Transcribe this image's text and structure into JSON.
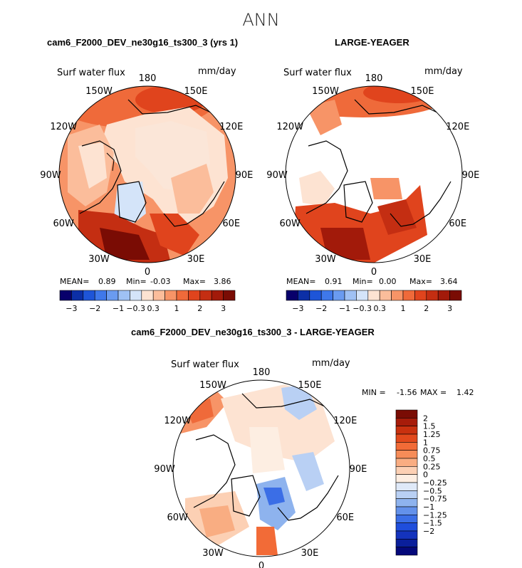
{
  "page": {
    "title": "ANN"
  },
  "panels": [
    {
      "title": "cam6_F2000_DEV_ne30g16_ts300_3 (yrs 1)",
      "variable": "Surf water flux",
      "units": "mm/day",
      "stats": {
        "mean_label": "MEAN=",
        "mean": "0.89",
        "min_label": "Min=",
        "min": "-0.03",
        "max_label": "Max=",
        "max": "3.86"
      }
    },
    {
      "title": "LARGE-YEAGER",
      "variable": "Surf water flux",
      "units": "mm/day",
      "stats": {
        "mean_label": "MEAN=",
        "mean": "0.91",
        "min_label": "Min=",
        "min": "0.00",
        "max_label": "Max=",
        "max": "3.64"
      }
    },
    {
      "title": "cam6_F2000_DEV_ne30g16_ts300_3 - LARGE-YEAGER",
      "variable": "Surf water flux",
      "units": "mm/day",
      "stats": {
        "min_label": "MIN =",
        "min": "-1.56",
        "max_label": "MAX =",
        "max": "1.42"
      }
    }
  ],
  "map_labels": {
    "lon": [
      "180",
      "150E",
      "120E",
      "90E",
      "60E",
      "30E",
      "0",
      "30W",
      "60W",
      "90W",
      "120W",
      "150W"
    ]
  },
  "colorbar_top": {
    "colors": [
      "#08006b",
      "#0c2fa6",
      "#1e55d8",
      "#3f78ea",
      "#6a9bf0",
      "#9fc1f4",
      "#d4e4f9",
      "#fde3d2",
      "#fbbd9b",
      "#f79467",
      "#ef6a3a",
      "#e0441d",
      "#c42e12",
      "#a21a0a",
      "#7a0c04"
    ],
    "tick_labels": [
      "-3",
      "-2",
      "-1",
      "-0.3",
      "0.3",
      "1",
      "2",
      "3"
    ]
  },
  "colorbar_diff": {
    "colors": [
      "#7a0c04",
      "#a71c0a",
      "#c9310f",
      "#e2491c",
      "#f26b37",
      "#f68c58",
      "#f9ad82",
      "#fcd0b4",
      "#fdeee2",
      "#dfe9f8",
      "#b9d0f4",
      "#8eb3ee",
      "#6391ea",
      "#3b6ee6",
      "#1f4edc",
      "#1433bd",
      "#0a1f9b",
      "#04087a"
    ],
    "tick_labels": [
      "2",
      "1.5",
      "1.25",
      "1",
      "0.75",
      "0.5",
      "0.25",
      "0",
      "-0.25",
      "-0.5",
      "-0.75",
      "-1",
      "-1.25",
      "-1.5",
      "-2"
    ]
  },
  "chart_data": [
    {
      "type": "heatmap",
      "projection": "north polar stereographic",
      "title": "cam6_F2000_DEV_ne30g16_ts300_3 (yrs 1)",
      "variable": "Surf water flux",
      "units": "mm/day",
      "mean": 0.89,
      "min": -0.03,
      "max": 3.86,
      "contour_levels": [
        -3,
        -2.5,
        -2,
        -1.5,
        -1,
        -0.6,
        -0.3,
        0,
        0.3,
        0.6,
        1,
        1.5,
        2,
        2.5,
        3
      ]
    },
    {
      "type": "heatmap",
      "projection": "north polar stereographic",
      "title": "LARGE-YEAGER",
      "variable": "Surf water flux",
      "units": "mm/day",
      "mean": 0.91,
      "min": 0.0,
      "max": 3.64,
      "contour_levels": [
        -3,
        -2.5,
        -2,
        -1.5,
        -1,
        -0.6,
        -0.3,
        0,
        0.3,
        0.6,
        1,
        1.5,
        2,
        2.5,
        3
      ]
    },
    {
      "type": "heatmap",
      "projection": "north polar stereographic",
      "title": "cam6_F2000_DEV_ne30g16_ts300_3 - LARGE-YEAGER",
      "variable": "Surf water flux",
      "units": "mm/day",
      "min": -1.56,
      "max": 1.42,
      "contour_levels": [
        2,
        1.5,
        1.25,
        1,
        0.75,
        0.5,
        0.25,
        0,
        -0.25,
        -0.5,
        -0.75,
        -1,
        -1.25,
        -1.5,
        -2
      ]
    }
  ]
}
